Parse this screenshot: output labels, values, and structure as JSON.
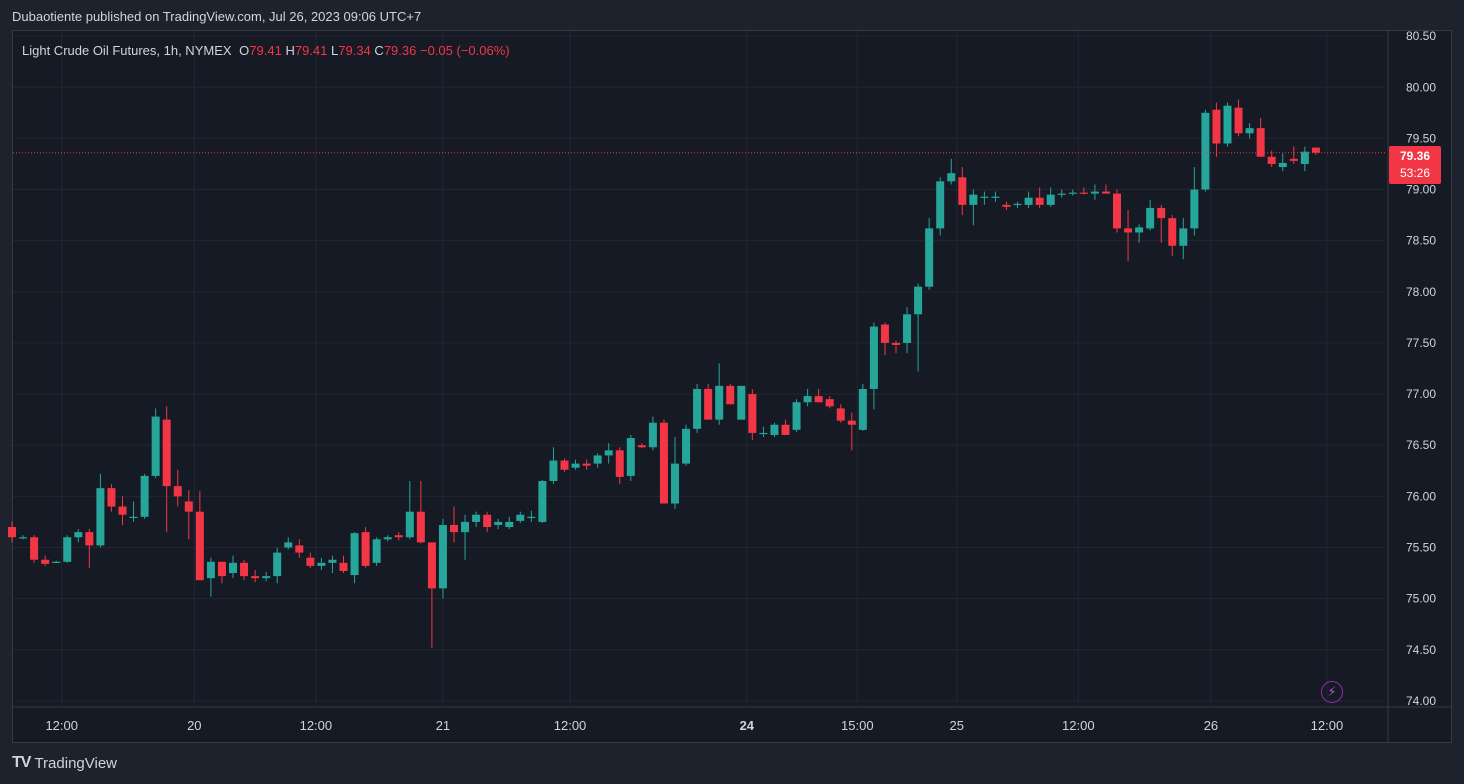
{
  "publisher_line": "Dubaotiente published on TradingView.com, Jul 26, 2023 09:06 UTC+7",
  "legend": {
    "symbol": "Light Crude Oil Futures, 1h, NYMEX",
    "o_label": "O",
    "o": "79.41",
    "h_label": "H",
    "h": "79.41",
    "l_label": "L",
    "l": "79.34",
    "c_label": "C",
    "c": "79.36",
    "change": "−0.05 (−0.06%)"
  },
  "last_price": "79.36",
  "countdown": "53:26",
  "footer_brand": "TradingView",
  "colors": {
    "up": "#26a69a",
    "down": "#f23645",
    "bg": "#161a25",
    "grid": "#232632",
    "text": "#d1d4dc"
  },
  "chart_data": {
    "type": "candlestick",
    "y_ticks": [
      "80.50",
      "80.00",
      "79.50",
      "79.00",
      "78.50",
      "78.00",
      "77.50",
      "77.00",
      "76.50",
      "76.00",
      "75.50",
      "75.00",
      "74.50",
      "74.00"
    ],
    "x_ticks": [
      {
        "label": "12:00",
        "bar": 4.5,
        "bold": false
      },
      {
        "label": "20",
        "bar": 16.5,
        "bold": false
      },
      {
        "label": "12:00",
        "bar": 27.5,
        "bold": false
      },
      {
        "label": "21",
        "bar": 39,
        "bold": false
      },
      {
        "label": "12:00",
        "bar": 50.5,
        "bold": false
      },
      {
        "label": "24",
        "bar": 66.5,
        "bold": true
      },
      {
        "label": "15:00",
        "bar": 76.5,
        "bold": false
      },
      {
        "label": "25",
        "bar": 85.5,
        "bold": false
      },
      {
        "label": "12:00",
        "bar": 96.5,
        "bold": false
      },
      {
        "label": "26",
        "bar": 108.5,
        "bold": false
      },
      {
        "label": "12:00",
        "bar": 119,
        "bold": false
      }
    ],
    "ylim": [
      73.95,
      80.55
    ],
    "last_price": 79.36,
    "candles": [
      [
        75.7,
        75.75,
        75.55,
        75.6
      ],
      [
        75.6,
        75.62,
        75.58,
        75.6
      ],
      [
        75.6,
        75.62,
        75.35,
        75.38
      ],
      [
        75.38,
        75.42,
        75.32,
        75.34
      ],
      [
        75.35,
        75.37,
        75.35,
        75.36
      ],
      [
        75.36,
        75.62,
        75.35,
        75.6
      ],
      [
        75.6,
        75.68,
        75.55,
        75.65
      ],
      [
        75.65,
        75.68,
        75.3,
        75.52
      ],
      [
        75.52,
        76.22,
        75.5,
        76.08
      ],
      [
        76.08,
        76.12,
        75.85,
        75.9
      ],
      [
        75.9,
        76.0,
        75.72,
        75.82
      ],
      [
        75.8,
        75.95,
        75.75,
        75.8
      ],
      [
        75.8,
        76.22,
        75.78,
        76.2
      ],
      [
        76.2,
        76.86,
        76.18,
        76.78
      ],
      [
        76.75,
        76.88,
        75.65,
        76.1
      ],
      [
        76.1,
        76.26,
        75.9,
        76.0
      ],
      [
        75.95,
        76.06,
        75.58,
        75.85
      ],
      [
        75.85,
        76.05,
        75.2,
        75.18
      ],
      [
        75.2,
        75.4,
        75.02,
        75.36
      ],
      [
        75.36,
        75.36,
        75.15,
        75.22
      ],
      [
        75.25,
        75.42,
        75.2,
        75.35
      ],
      [
        75.35,
        75.38,
        75.18,
        75.22
      ],
      [
        75.22,
        75.28,
        75.16,
        75.2
      ],
      [
        75.2,
        75.26,
        75.17,
        75.22
      ],
      [
        75.22,
        75.5,
        75.15,
        75.45
      ],
      [
        75.5,
        75.6,
        75.48,
        75.55
      ],
      [
        75.52,
        75.58,
        75.4,
        75.45
      ],
      [
        75.4,
        75.45,
        75.3,
        75.32
      ],
      [
        75.32,
        75.4,
        75.28,
        75.35
      ],
      [
        75.35,
        75.42,
        75.25,
        75.38
      ],
      [
        75.35,
        75.42,
        75.25,
        75.27
      ],
      [
        75.23,
        75.65,
        75.15,
        75.64
      ],
      [
        75.65,
        75.7,
        75.3,
        75.32
      ],
      [
        75.35,
        75.6,
        75.32,
        75.58
      ],
      [
        75.58,
        75.62,
        75.56,
        75.6
      ],
      [
        75.62,
        75.65,
        75.57,
        75.6
      ],
      [
        75.6,
        76.15,
        75.58,
        75.85
      ],
      [
        75.85,
        76.15,
        75.54,
        75.55
      ],
      [
        75.55,
        75.55,
        74.52,
        75.1
      ],
      [
        75.1,
        75.78,
        75.0,
        75.72
      ],
      [
        75.72,
        75.9,
        75.55,
        75.65
      ],
      [
        75.65,
        75.82,
        75.38,
        75.75
      ],
      [
        75.75,
        75.85,
        75.7,
        75.82
      ],
      [
        75.82,
        75.85,
        75.65,
        75.7
      ],
      [
        75.72,
        75.78,
        75.68,
        75.75
      ],
      [
        75.7,
        75.8,
        75.68,
        75.75
      ],
      [
        75.76,
        75.85,
        75.74,
        75.82
      ],
      [
        75.8,
        75.86,
        75.75,
        75.8
      ],
      [
        75.75,
        76.16,
        75.74,
        76.15
      ],
      [
        76.15,
        76.48,
        76.12,
        76.35
      ],
      [
        76.35,
        76.37,
        76.24,
        76.26
      ],
      [
        76.28,
        76.36,
        76.26,
        76.32
      ],
      [
        76.32,
        76.36,
        76.26,
        76.3
      ],
      [
        76.32,
        76.42,
        76.28,
        76.4
      ],
      [
        76.4,
        76.52,
        76.32,
        76.45
      ],
      [
        76.45,
        76.48,
        76.12,
        76.19
      ],
      [
        76.2,
        76.6,
        76.15,
        76.57
      ],
      [
        76.5,
        76.52,
        76.47,
        76.48
      ],
      [
        76.48,
        76.78,
        76.45,
        76.72
      ],
      [
        76.72,
        76.75,
        75.94,
        75.93
      ],
      [
        75.93,
        76.58,
        75.88,
        76.32
      ],
      [
        76.32,
        76.7,
        76.3,
        76.66
      ],
      [
        76.66,
        77.1,
        76.62,
        77.05
      ],
      [
        77.05,
        77.1,
        76.75,
        76.75
      ],
      [
        76.75,
        77.3,
        76.7,
        77.08
      ],
      [
        77.08,
        77.1,
        76.9,
        76.9
      ],
      [
        76.75,
        77.08,
        76.75,
        77.08
      ],
      [
        77.0,
        77.05,
        76.55,
        76.62
      ],
      [
        76.62,
        76.68,
        76.58,
        76.62
      ],
      [
        76.6,
        76.72,
        76.58,
        76.7
      ],
      [
        76.7,
        76.75,
        76.62,
        76.6
      ],
      [
        76.65,
        76.95,
        76.63,
        76.92
      ],
      [
        76.92,
        77.05,
        76.88,
        76.98
      ],
      [
        76.98,
        77.05,
        76.92,
        76.92
      ],
      [
        76.95,
        76.98,
        76.86,
        76.88
      ],
      [
        76.86,
        76.9,
        76.72,
        76.74
      ],
      [
        76.74,
        76.82,
        76.45,
        76.7
      ],
      [
        76.65,
        77.1,
        76.64,
        77.05
      ],
      [
        77.05,
        77.7,
        76.85,
        77.66
      ],
      [
        77.68,
        77.7,
        77.38,
        77.5
      ],
      [
        77.5,
        77.52,
        77.4,
        77.48
      ],
      [
        77.5,
        77.85,
        77.4,
        77.78
      ],
      [
        77.78,
        78.08,
        77.22,
        78.05
      ],
      [
        78.05,
        78.72,
        78.02,
        78.62
      ],
      [
        78.62,
        79.12,
        78.55,
        79.08
      ],
      [
        79.08,
        79.3,
        79.05,
        79.16
      ],
      [
        79.12,
        79.22,
        78.75,
        78.85
      ],
      [
        78.85,
        79.0,
        78.65,
        78.95
      ],
      [
        78.92,
        78.98,
        78.85,
        78.93
      ],
      [
        78.92,
        78.98,
        78.88,
        78.93
      ],
      [
        78.85,
        78.88,
        78.8,
        78.83
      ],
      [
        78.85,
        78.88,
        78.82,
        78.86
      ],
      [
        78.85,
        78.98,
        78.82,
        78.92
      ],
      [
        78.92,
        79.02,
        78.82,
        78.85
      ],
      [
        78.85,
        79.02,
        78.83,
        78.95
      ],
      [
        78.95,
        79.0,
        78.92,
        78.96
      ],
      [
        78.96,
        79.0,
        78.94,
        78.97
      ],
      [
        78.97,
        79.02,
        78.95,
        78.96
      ],
      [
        78.96,
        79.05,
        78.9,
        78.98
      ],
      [
        78.98,
        79.05,
        78.96,
        78.96
      ],
      [
        78.96,
        79.0,
        78.58,
        78.62
      ],
      [
        78.62,
        78.8,
        78.3,
        78.58
      ],
      [
        78.58,
        78.66,
        78.48,
        78.63
      ],
      [
        78.62,
        78.9,
        78.6,
        78.82
      ],
      [
        78.82,
        78.85,
        78.48,
        78.72
      ],
      [
        78.72,
        78.75,
        78.35,
        78.45
      ],
      [
        78.45,
        78.72,
        78.32,
        78.62
      ],
      [
        78.62,
        79.22,
        78.55,
        79.0
      ],
      [
        79.0,
        79.78,
        78.98,
        79.75
      ],
      [
        79.78,
        79.85,
        79.32,
        79.45
      ],
      [
        79.45,
        79.85,
        79.42,
        79.82
      ],
      [
        79.8,
        79.88,
        79.52,
        79.55
      ],
      [
        79.55,
        79.65,
        79.5,
        79.6
      ],
      [
        79.6,
        79.7,
        79.35,
        79.32
      ],
      [
        79.32,
        79.38,
        79.22,
        79.25
      ],
      [
        79.22,
        79.35,
        79.18,
        79.26
      ],
      [
        79.3,
        79.42,
        79.25,
        79.28
      ],
      [
        79.25,
        79.42,
        79.18,
        79.37
      ],
      [
        79.41,
        79.41,
        79.34,
        79.36
      ]
    ]
  }
}
